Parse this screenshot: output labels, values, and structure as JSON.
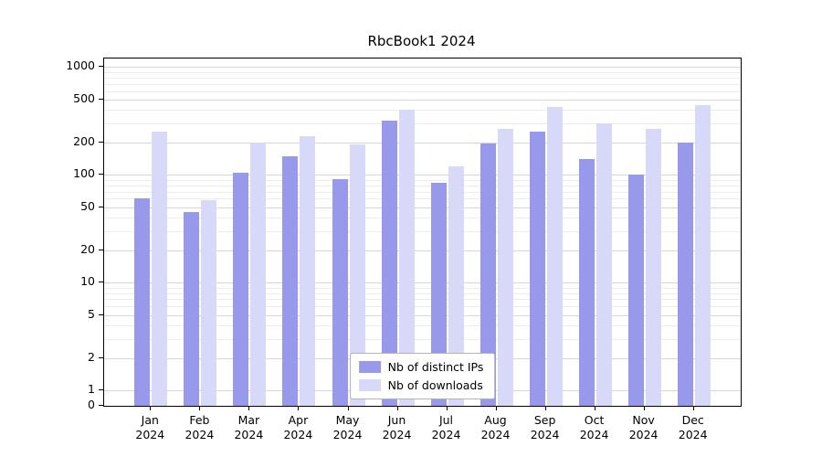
{
  "chart_data": {
    "type": "bar",
    "title": "RbcBook1 2024",
    "scale": "symlog",
    "grid": true,
    "legend_position": "lower center",
    "categories": [
      "Jan 2024",
      "Feb 2024",
      "Mar 2024",
      "Apr 2024",
      "May 2024",
      "Jun 2024",
      "Jul 2024",
      "Aug 2024",
      "Sep 2024",
      "Oct 2024",
      "Nov 2024",
      "Dec 2024"
    ],
    "series": [
      {
        "name": "Nb of distinct IPs",
        "color": "#9999ec",
        "values": [
          60,
          45,
          105,
          150,
          92,
          320,
          85,
          195,
          250,
          140,
          100,
          200
        ]
      },
      {
        "name": "Nb of downloads",
        "color": "#d8d8f8",
        "values": [
          250,
          58,
          200,
          230,
          190,
          400,
          120,
          265,
          430,
          300,
          265,
          440
        ]
      }
    ],
    "y_ticks": [
      0,
      1,
      2,
      5,
      10,
      20,
      50,
      100,
      200,
      500,
      1000
    ],
    "ylim": [
      0,
      1200
    ],
    "xlabel": "",
    "ylabel": ""
  },
  "colors": {
    "grid_major": "#d6d6d6",
    "grid_minor": "#ececec",
    "axis": "#000000"
  }
}
